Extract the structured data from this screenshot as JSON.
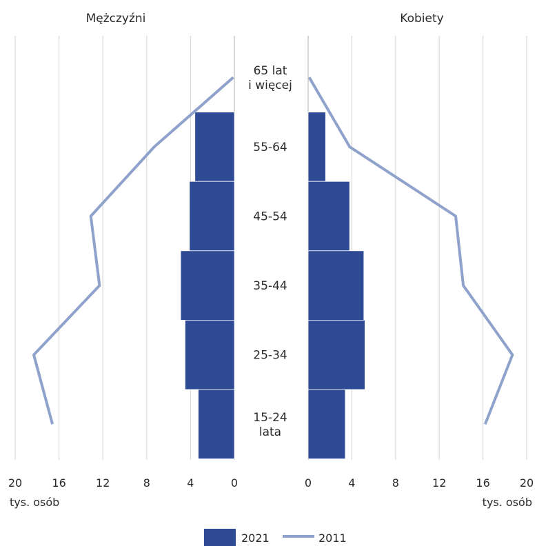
{
  "chart_data": {
    "type": "bar",
    "subtype": "population-pyramid",
    "panels": [
      {
        "side": "left",
        "title": "Mężczyźni"
      },
      {
        "side": "right",
        "title": "Kobiety"
      }
    ],
    "categories": [
      {
        "key": "65+",
        "label_lines": [
          "65 lat",
          "i więcej"
        ]
      },
      {
        "key": "55-64",
        "label_lines": [
          "55-64"
        ]
      },
      {
        "key": "45-54",
        "label_lines": [
          "45-54"
        ]
      },
      {
        "key": "35-44",
        "label_lines": [
          "35-44"
        ]
      },
      {
        "key": "25-34",
        "label_lines": [
          "25-34"
        ]
      },
      {
        "key": "15-24",
        "label_lines": [
          "15-24",
          "lata"
        ]
      }
    ],
    "series": [
      {
        "name": "2021",
        "kind": "bar",
        "color": "#2e4a95",
        "men": [
          0,
          3.6,
          4.1,
          4.9,
          4.5,
          3.3
        ],
        "women": [
          0,
          1.6,
          3.8,
          5.1,
          5.2,
          3.4
        ]
      },
      {
        "name": "2011",
        "kind": "line",
        "color": "#8fa2cc",
        "men": [
          0.1,
          7.3,
          13.1,
          12.3,
          18.3,
          16.6
        ],
        "women": [
          0.1,
          3.8,
          13.5,
          14.2,
          18.7,
          16.2
        ]
      }
    ],
    "x_ticks": [
      20,
      16,
      12,
      8,
      4,
      0
    ],
    "xlim": [
      0,
      20
    ],
    "unit_label": "tys. osób",
    "grid": true,
    "legend_position": "bottom-center"
  }
}
